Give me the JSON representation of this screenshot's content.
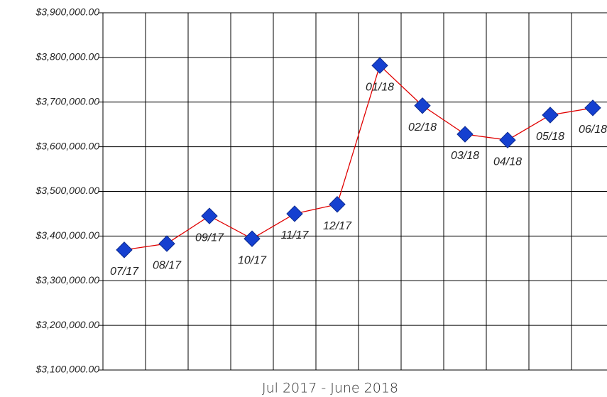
{
  "chart_data": {
    "type": "line",
    "x_label": "Jul 2017 - June 2018",
    "categories": [
      "07/17",
      "08/17",
      "09/17",
      "10/17",
      "11/17",
      "12/17",
      "01/18",
      "02/18",
      "03/18",
      "04/18",
      "05/18",
      "06/18"
    ],
    "series": [
      {
        "color": "#e00000",
        "marker_color": "#1540d0",
        "values": [
          3369000,
          3383000,
          3445000,
          3394000,
          3450000,
          3471000,
          3782000,
          3692000,
          3628000,
          3615000,
          3671000,
          3687000
        ]
      }
    ],
    "ylim": [
      3100000,
      3900000
    ],
    "yticks": [
      {
        "value": 3100000,
        "label": "$3,100,000.00"
      },
      {
        "value": 3200000,
        "label": "$3,200,000.00"
      },
      {
        "value": 3300000,
        "label": "$3,300,000.00"
      },
      {
        "value": 3400000,
        "label": "$3,400,000.00"
      },
      {
        "value": 3500000,
        "label": "$3,500,000.00"
      },
      {
        "value": 3600000,
        "label": "$3,600,000.00"
      },
      {
        "value": 3700000,
        "label": "$3,700,000.00"
      },
      {
        "value": 3800000,
        "label": "$3,800,000.00"
      },
      {
        "value": 3900000,
        "label": "$3,900,000.00"
      }
    ],
    "grid": true
  }
}
